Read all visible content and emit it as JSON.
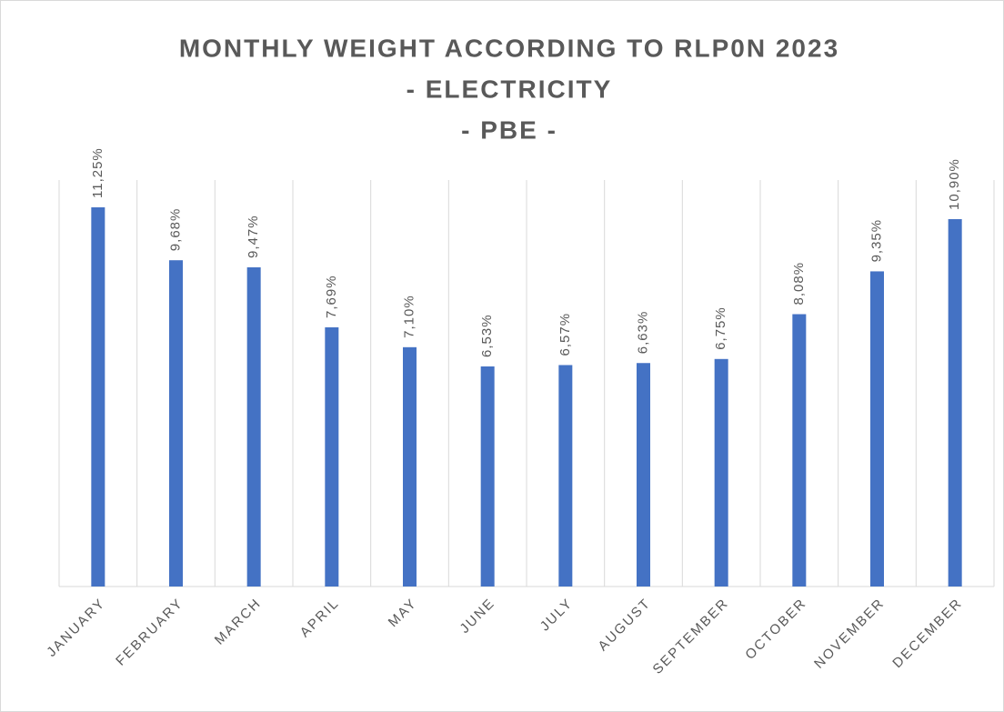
{
  "chart_data": {
    "type": "bar",
    "title": [
      "MONTHLY WEIGHT ACCORDING TO RLP0N 2023",
      "- ELECTRICITY",
      "- PBE -"
    ],
    "categories": [
      "JANUARY",
      "FEBRUARY",
      "MARCH",
      "APRIL",
      "MAY",
      "JUNE",
      "JULY",
      "AUGUST",
      "SEPTEMBER",
      "OCTOBER",
      "NOVEMBER",
      "DECEMBER"
    ],
    "values": [
      11.25,
      9.68,
      9.47,
      7.69,
      7.1,
      6.53,
      6.57,
      6.63,
      6.75,
      8.08,
      9.35,
      10.9
    ],
    "value_labels": [
      "11,25%",
      "9,68%",
      "9,47%",
      "7,69%",
      "7,10%",
      "6,53%",
      "6,57%",
      "6,63%",
      "6,75%",
      "8,08%",
      "9,35%",
      "10,90%"
    ],
    "color": "#4472c4",
    "grid": true
  }
}
